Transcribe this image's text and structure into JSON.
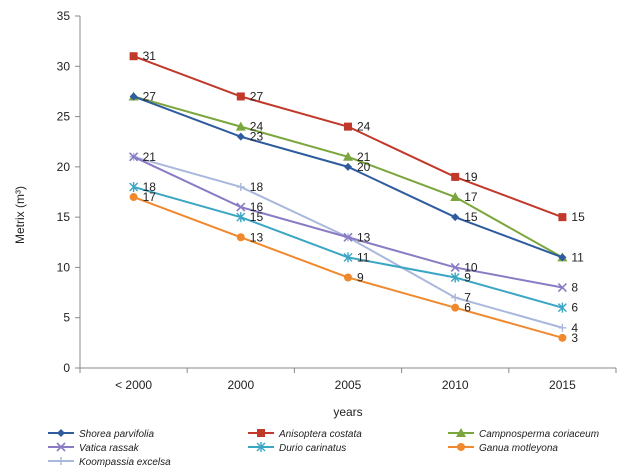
{
  "chart_data": {
    "type": "line",
    "title": "",
    "xlabel": "years",
    "ylabel": "Metrix (m³)",
    "categories": [
      "< 2000",
      "2000",
      "2005",
      "2010",
      "2015"
    ],
    "ylim": [
      0,
      35
    ],
    "yticks": [
      0,
      5,
      10,
      15,
      20,
      25,
      30,
      35
    ],
    "grid": false,
    "legend_position": "bottom",
    "series": [
      {
        "name": "Shorea parvifolia",
        "values": [
          27,
          23,
          20,
          15,
          11
        ],
        "color": "#2e5c9e",
        "marker": "diamond",
        "labels": [
          null,
          "23",
          "20",
          "15",
          null
        ]
      },
      {
        "name": "Anisoptera costata",
        "values": [
          31,
          27,
          24,
          19,
          15
        ],
        "color": "#c0392b",
        "marker": "square",
        "labels": [
          "31",
          "27",
          "24",
          "19",
          "15"
        ]
      },
      {
        "name": "Campnosperma coriaceum",
        "values": [
          27,
          24,
          21,
          17,
          11
        ],
        "color": "#7aa63d",
        "marker": "triangle",
        "labels": [
          "27",
          "24",
          "21",
          "17",
          "11"
        ]
      },
      {
        "name": "Vatica rassak",
        "values": [
          21,
          16,
          13,
          10,
          8
        ],
        "color": "#8a7bc4",
        "marker": "x",
        "labels": [
          "21",
          "16",
          "13",
          "10",
          "8"
        ]
      },
      {
        "name": "Durio carinatus",
        "values": [
          18,
          15,
          11,
          9,
          6
        ],
        "color": "#3aa6c4",
        "marker": "star",
        "labels": [
          "18",
          "15",
          "11",
          "9",
          "6"
        ]
      },
      {
        "name": "Ganua motleyona",
        "values": [
          17,
          13,
          9,
          6,
          3
        ],
        "color": "#f0892e",
        "marker": "circle",
        "labels": [
          "17",
          "13",
          "9",
          "6",
          "3"
        ]
      },
      {
        "name": "Koompassia excelsa",
        "values": [
          21,
          18,
          13,
          7,
          4
        ],
        "color": "#a9b8dc",
        "marker": "plus",
        "labels": [
          null,
          "18",
          null,
          "7",
          "4"
        ]
      }
    ]
  }
}
